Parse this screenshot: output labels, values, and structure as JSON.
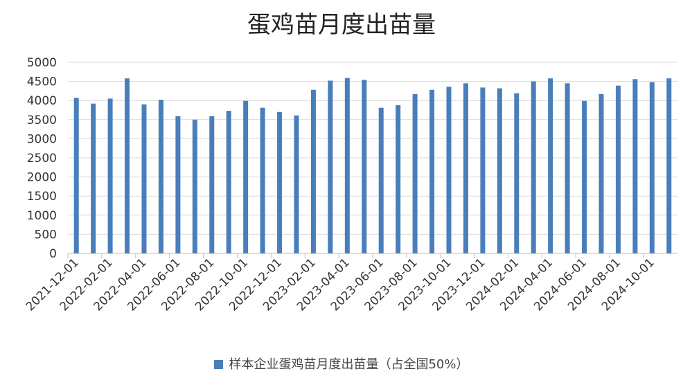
{
  "chart_data": {
    "type": "bar",
    "title": "蛋鸡苗月度出苗量",
    "xlabel": "",
    "ylabel": "",
    "ylim": [
      0,
      5000
    ],
    "yticks": [
      0,
      500,
      1000,
      1500,
      2000,
      2500,
      3000,
      3500,
      4000,
      4500,
      5000
    ],
    "grid": true,
    "legend_position": "bottom",
    "color": "#4a7ebb",
    "categories": [
      "2021-12-01",
      "2022-01-01",
      "2022-02-01",
      "2022-03-01",
      "2022-04-01",
      "2022-05-01",
      "2022-06-01",
      "2022-07-01",
      "2022-08-01",
      "2022-09-01",
      "2022-10-01",
      "2022-11-01",
      "2022-12-01",
      "2023-01-01",
      "2023-02-01",
      "2023-03-01",
      "2023-04-01",
      "2023-05-01",
      "2023-06-01",
      "2023-07-01",
      "2023-08-01",
      "2023-09-01",
      "2023-10-01",
      "2023-11-01",
      "2023-12-01",
      "2024-01-01",
      "2024-02-01",
      "2024-03-01",
      "2024-04-01",
      "2024-05-01",
      "2024-06-01",
      "2024-07-01",
      "2024-08-01",
      "2024-09-01",
      "2024-10-01",
      "2024-11-01"
    ],
    "xtick_labels": [
      "2021-12-01",
      "2022-02-01",
      "2022-04-01",
      "2022-06-01",
      "2022-08-01",
      "2022-10-01",
      "2022-12-01",
      "2023-02-01",
      "2023-04-01",
      "2023-06-01",
      "2023-08-01",
      "2023-10-01",
      "2023-12-01",
      "2024-02-01",
      "2024-04-01",
      "2024-06-01",
      "2024-08-01",
      "2024-10-01"
    ],
    "series": [
      {
        "name": "样本企业蛋鸡苗月度出苗量（占全国50%）",
        "values": [
          4070,
          3920,
          4050,
          4580,
          3900,
          4020,
          3590,
          3500,
          3590,
          3730,
          3990,
          3810,
          3700,
          3610,
          4280,
          4520,
          4590,
          4540,
          3810,
          3880,
          4170,
          4280,
          4360,
          4450,
          4340,
          4320,
          4190,
          4500,
          4580,
          4450,
          3990,
          4170,
          4390,
          4560,
          4480,
          4580
        ]
      }
    ]
  }
}
